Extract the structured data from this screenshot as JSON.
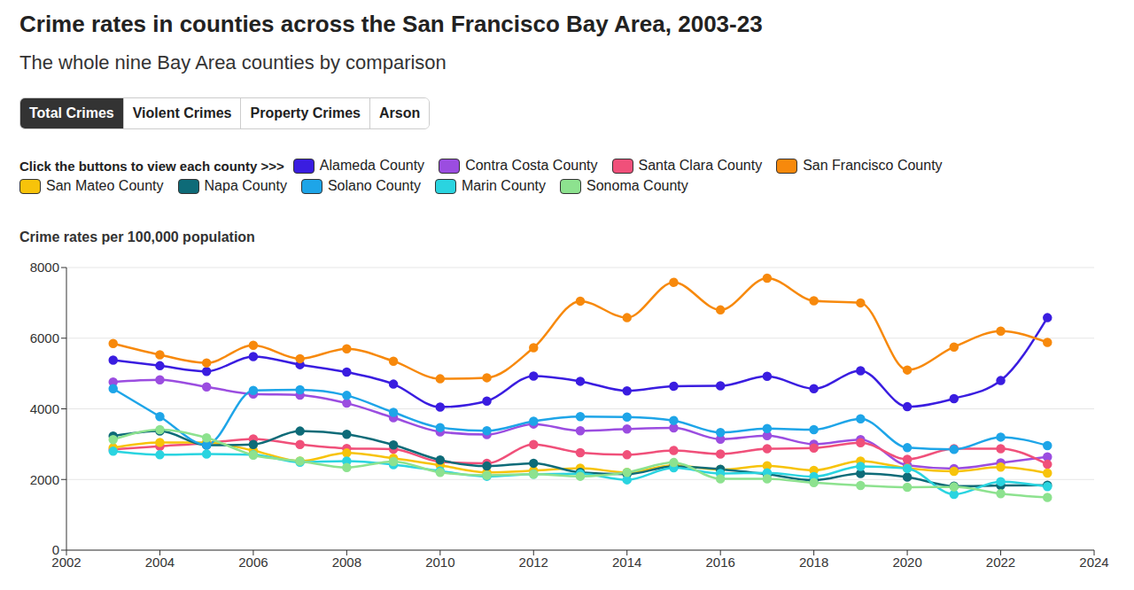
{
  "chart_data": {
    "type": "line",
    "title": "Crime rates in counties across the San Francisco Bay Area, 2003-23",
    "subtitle": "The whole nine Bay Area counties by comparison",
    "buttons": [
      "Total Crimes",
      "Violent Crimes",
      "Property Crimes",
      "Arson"
    ],
    "legend_title": "Click the buttons to view each county >>>",
    "y_label": "Crime rates per 100,000 population",
    "x": [
      2003,
      2004,
      2005,
      2006,
      2007,
      2008,
      2009,
      2010,
      2011,
      2012,
      2013,
      2014,
      2015,
      2016,
      2017,
      2018,
      2019,
      2020,
      2021,
      2022,
      2023
    ],
    "series": [
      {
        "name": "Alameda County",
        "color": "#3a1de0",
        "values": [
          5380,
          5220,
          5060,
          5480,
          5250,
          5040,
          4700,
          4050,
          4220,
          4930,
          4780,
          4510,
          4640,
          4650,
          4920,
          4570,
          5080,
          4060,
          4290,
          4800,
          6580
        ]
      },
      {
        "name": "Contra Costa County",
        "color": "#9b4de0",
        "values": [
          4760,
          4820,
          4620,
          4420,
          4390,
          4160,
          3750,
          3350,
          3270,
          3570,
          3380,
          3430,
          3460,
          3140,
          3240,
          3000,
          3130,
          2400,
          2310,
          2470,
          2640
        ]
      },
      {
        "name": "Santa Clara County",
        "color": "#f0507a",
        "values": [
          2850,
          2940,
          3030,
          3150,
          2990,
          2880,
          2860,
          2500,
          2460,
          2990,
          2760,
          2700,
          2820,
          2720,
          2870,
          2890,
          3040,
          2570,
          2870,
          2870,
          2430
        ]
      },
      {
        "name": "San Francisco County",
        "color": "#f7890c",
        "values": [
          5850,
          5530,
          5300,
          5800,
          5420,
          5700,
          5350,
          4850,
          4880,
          5730,
          7050,
          6580,
          7580,
          6800,
          7700,
          7060,
          7000,
          5100,
          5750,
          6200,
          5880
        ]
      },
      {
        "name": "San Mateo County",
        "color": "#f7c30a",
        "values": [
          2900,
          3050,
          3050,
          2820,
          2520,
          2750,
          2600,
          2400,
          2200,
          2250,
          2320,
          2200,
          2400,
          2280,
          2390,
          2260,
          2520,
          2320,
          2230,
          2350,
          2180
        ]
      },
      {
        "name": "Napa County",
        "color": "#0e6b78",
        "values": [
          3230,
          3370,
          2970,
          2990,
          3370,
          3280,
          2980,
          2550,
          2380,
          2460,
          2200,
          2150,
          2370,
          2290,
          2150,
          1980,
          2170,
          2070,
          1810,
          1830,
          1840
        ]
      },
      {
        "name": "Solano County",
        "color": "#1ea5e8",
        "values": [
          4570,
          3780,
          2980,
          4520,
          4540,
          4380,
          3900,
          3470,
          3380,
          3650,
          3780,
          3770,
          3670,
          3330,
          3440,
          3410,
          3720,
          2900,
          2850,
          3200,
          2960
        ]
      },
      {
        "name": "Marin County",
        "color": "#2ad4e0",
        "values": [
          2800,
          2700,
          2720,
          2700,
          2490,
          2520,
          2420,
          2240,
          2090,
          2150,
          2160,
          1990,
          2330,
          2170,
          2190,
          2080,
          2370,
          2310,
          1580,
          1940,
          1800
        ]
      },
      {
        "name": "Sonoma County",
        "color": "#8de28f",
        "values": [
          3130,
          3410,
          3180,
          2690,
          2520,
          2340,
          2510,
          2200,
          2120,
          2150,
          2090,
          2200,
          2480,
          2020,
          2020,
          1910,
          1830,
          1780,
          1790,
          1600,
          1490
        ]
      }
    ],
    "xlim": [
      2002,
      2024
    ],
    "xticks": [
      2002,
      2004,
      2006,
      2008,
      2010,
      2012,
      2014,
      2016,
      2018,
      2020,
      2022,
      2024
    ],
    "ylim": [
      0,
      8000
    ],
    "yticks": [
      0,
      2000,
      4000,
      6000,
      8000
    ],
    "grid": true,
    "marker": "circle",
    "line_style": "smooth"
  }
}
